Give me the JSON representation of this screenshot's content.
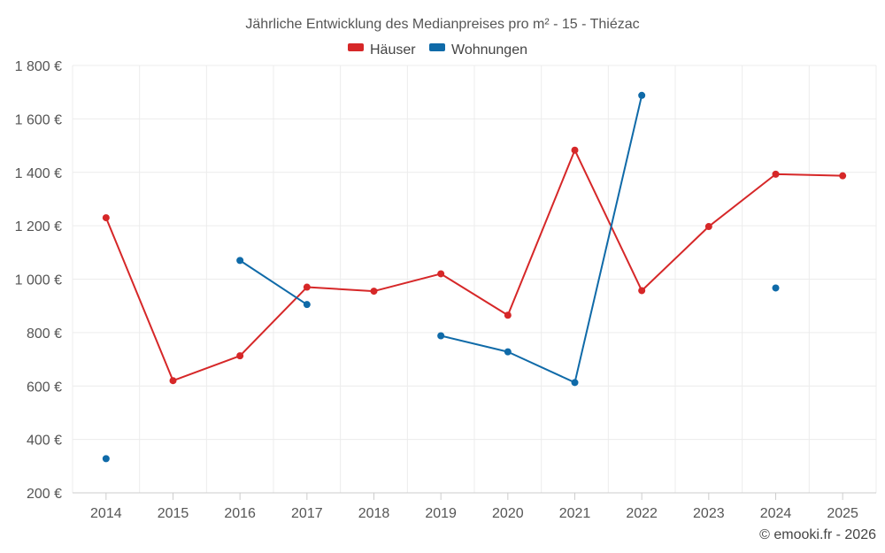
{
  "chart_data": {
    "type": "line",
    "title": "Jährliche Entwicklung des Medianpreises pro m² - 15 - Thiézac",
    "x": [
      "2014",
      "2015",
      "2016",
      "2017",
      "2018",
      "2019",
      "2020",
      "2021",
      "2022",
      "2023",
      "2024",
      "2025"
    ],
    "ylim": [
      200,
      1800
    ],
    "yticks": [
      200,
      400,
      600,
      800,
      1000,
      1200,
      1400,
      1600,
      1800
    ],
    "ytick_labels": [
      "200 €",
      "400 €",
      "600 €",
      "800 €",
      "1 000 €",
      "1 200 €",
      "1 400 €",
      "1 600 €",
      "1 800 €"
    ],
    "grid": true,
    "legend_position": "top-center",
    "series": [
      {
        "name": "Häuser",
        "color": "#d62728",
        "values": [
          1230,
          620,
          713,
          970,
          955,
          1020,
          865,
          1483,
          957,
          1197,
          1393,
          1387
        ]
      },
      {
        "name": "Wohnungen",
        "color": "#0f6aa8",
        "values": [
          328,
          null,
          1070,
          905,
          null,
          788,
          728,
          613,
          1688,
          null,
          967,
          null
        ]
      }
    ]
  },
  "credit": "© emooki.fr - 2026"
}
